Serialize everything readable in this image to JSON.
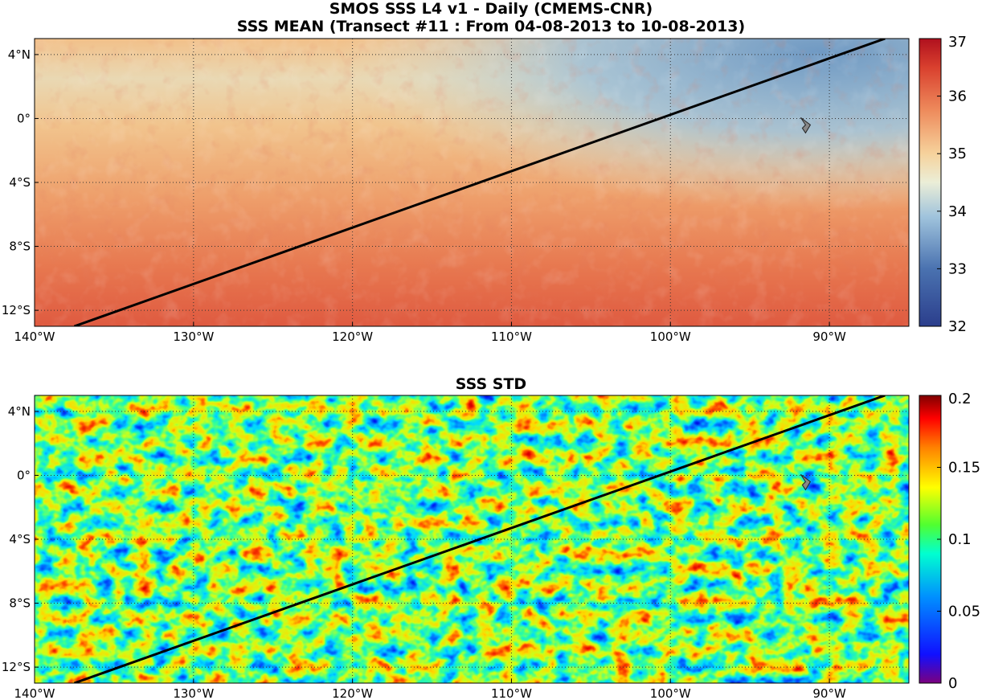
{
  "titles": {
    "main_line1": "SMOS SSS L4 v1 - Daily (CMEMS-CNR)",
    "main_line2": "SSS MEAN (Transect #11 : From 04-08-2013 to 10-08-2013)",
    "bottom": "SSS STD"
  },
  "lon_ticks": [
    "140°W",
    "130°W",
    "120°W",
    "110°W",
    "100°W",
    "90°W"
  ],
  "lat_ticks": [
    "4°N",
    "0°",
    "4°S",
    "8°S",
    "12°S"
  ],
  "top_panel": {
    "variable": "SSS MEAN",
    "colorbar_ticks": [
      "37",
      "36",
      "35",
      "34",
      "33",
      "32"
    ],
    "colorbar_range": [
      32,
      37
    ],
    "colors": {
      "north_fresh": "#6f99c3",
      "transition": "#e4e6d0",
      "mid": "#f2be83",
      "south_salty": "#e25e43"
    }
  },
  "bottom_panel": {
    "variable": "SSS STD",
    "colorbar_ticks": [
      "0.2",
      "0.15",
      "0.1",
      "0.05",
      "0"
    ],
    "colorbar_range": [
      0,
      0.2
    ]
  },
  "transect": {
    "start_lon": -137.5,
    "start_lat": -13.0,
    "end_lon": -86.5,
    "end_lat": 5.0,
    "color": "#000000"
  },
  "map_extent": {
    "lon": [
      -140,
      -85
    ],
    "lat": [
      -13,
      5
    ]
  },
  "marker": {
    "lon": -91.5,
    "lat": -0.4,
    "icon": "galapagos-island-marker"
  }
}
